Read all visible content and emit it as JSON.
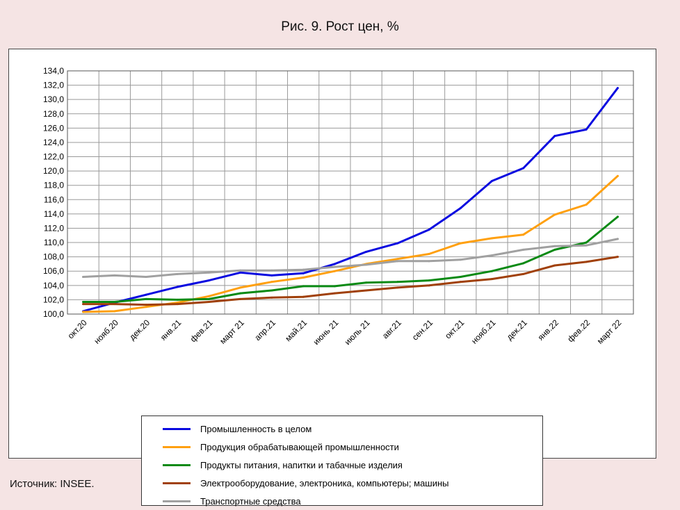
{
  "title": "Рис. 9. Рост цен, %",
  "source": "Источник: INSEE.",
  "chart_data": {
    "type": "line",
    "title": "Рис. 9. Рост цен, %",
    "xlabel": "",
    "ylabel": "",
    "ylim": [
      100,
      134
    ],
    "ystep": 2,
    "grid": true,
    "legend_position": "bottom",
    "categories": [
      "окт.20",
      "нояб.20",
      "дек.20",
      "янв.21",
      "фев.21",
      "март 21",
      "апр.21",
      "май.21",
      "июнь 21",
      "июль 21",
      "авг.21",
      "сен.21",
      "окт.21",
      "нояб.21",
      "дек.21",
      "янв.22",
      "фев.22",
      "март 22"
    ],
    "y_tick_labels": [
      "100,0",
      "102,0",
      "104,0",
      "106,0",
      "108,0",
      "110,0",
      "112,0",
      "114,0",
      "116,0",
      "118,0",
      "120,0",
      "122,0",
      "124,0",
      "126,0",
      "128,0",
      "130,0",
      "132,0",
      "134,0"
    ],
    "series": [
      {
        "name": "Промышленность в целом",
        "color": "#0a0ae0",
        "values": [
          100.4,
          101.6,
          102.7,
          103.8,
          104.7,
          105.8,
          105.4,
          105.7,
          107.0,
          108.7,
          109.9,
          111.8,
          114.8,
          118.6,
          120.4,
          124.9,
          125.8,
          131.6
        ]
      },
      {
        "name": "Продукция обрабатывающей промышленности",
        "color": "#ffa010",
        "values": [
          100.3,
          100.4,
          101.0,
          101.6,
          102.5,
          103.7,
          104.5,
          105.1,
          106.0,
          107.0,
          107.7,
          108.4,
          109.9,
          110.6,
          111.1,
          113.9,
          115.3,
          119.3
        ]
      },
      {
        "name": "Продукты питания, напитки и табачные изделия",
        "color": "#0a8a14",
        "values": [
          101.7,
          101.7,
          102.1,
          102.0,
          102.1,
          102.9,
          103.3,
          103.9,
          103.9,
          104.4,
          104.5,
          104.7,
          105.2,
          106.0,
          107.1,
          109.0,
          110.0,
          113.6
        ]
      },
      {
        "name": "Электрооборудование, электроника, компьютеры; машины",
        "color": "#a0400a",
        "values": [
          101.4,
          101.4,
          101.3,
          101.4,
          101.7,
          102.1,
          102.3,
          102.4,
          102.9,
          103.3,
          103.7,
          104.0,
          104.5,
          104.9,
          105.6,
          106.8,
          107.3,
          108.0
        ]
      },
      {
        "name": "Транспортные средства",
        "color": "#a0a0a0",
        "values": [
          105.2,
          105.4,
          105.2,
          105.6,
          105.8,
          106.1,
          106.1,
          106.2,
          106.6,
          106.9,
          107.4,
          107.4,
          107.6,
          108.2,
          109.0,
          109.5,
          109.6,
          110.5
        ]
      }
    ]
  }
}
